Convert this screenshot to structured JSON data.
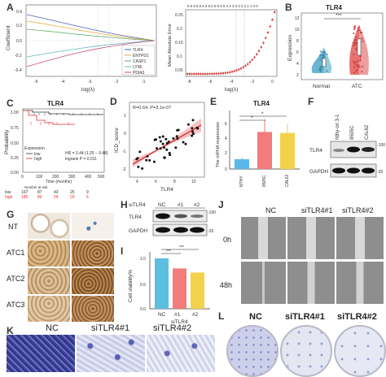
{
  "panel_letters": [
    "A",
    "B",
    "C",
    "D",
    "E",
    "F",
    "G",
    "H",
    "I",
    "J",
    "K",
    "L"
  ],
  "A": {
    "left": {
      "ylabel": "Coefficient",
      "xlabel": "log(λ)",
      "xticks": [
        "-5",
        "-4",
        "-3",
        "-2",
        "-1"
      ],
      "yticks": [
        "0.4",
        "0.2",
        "0.0",
        "-0.2",
        "-0.4"
      ],
      "legend": [
        "TLR4",
        "ENTPD1",
        "CASP1",
        "LY96",
        "PDIA3"
      ],
      "legend_colors": [
        "#4a63b0",
        "#e4a836",
        "#5aa864",
        "#5cb8c8",
        "#c84b7a"
      ]
    },
    "right": {
      "ylabel": "Mean Absolute Error",
      "xlabel": "log(λ)",
      "xticks": [
        "-8",
        "-6",
        "-4",
        "-2",
        "0"
      ],
      "yticks": [
        "0.25",
        "0.2",
        "0.15",
        "0.1",
        "0.05"
      ],
      "top_ticks": "5 5 5 5 5 5 5 5 5 5 5 5 5 4 4 4 3 3 2 2 1 1 0 0"
    }
  },
  "B": {
    "title": "TLR4",
    "ylabel": "Expression",
    "categories": [
      "Normal",
      "ATC"
    ],
    "sig": "***",
    "yticks": [
      "12",
      "10",
      "8",
      "6",
      "4",
      "2"
    ],
    "colors": [
      "#4fa9c9",
      "#e35b5b"
    ]
  },
  "C": {
    "title": "TLR4",
    "ylabel": "Probability",
    "xlabel": "Time (months)",
    "yticks": [
      "1.00",
      "0.75",
      "0.50",
      "0.25",
      "0.00"
    ],
    "xticks": [
      "0",
      "100",
      "200",
      "300",
      "400",
      "500"
    ],
    "legend_title": "Expression",
    "legend": [
      "low",
      "high"
    ],
    "stat1": "HR = 3.44 (1.25 − 9.48)",
    "stat2": "logrank P = 0.011",
    "risk_title": "Number at risk",
    "risk_low": [
      "107",
      "87",
      "43",
      "25",
      "9"
    ],
    "risk_high": [
      "185",
      "80",
      "24",
      "20",
      "6"
    ]
  },
  "D": {
    "annot": "R=0.64, P=3.1e-07",
    "xlabel": "TLR4",
    "ylabel": "ICD_score",
    "xticks": [
      "4",
      "6",
      "8",
      "10"
    ],
    "yticks": [
      "1",
      "0",
      "-1",
      "-2"
    ]
  },
  "E": {
    "title": "TLR4",
    "ylabel": "The mRNA expression",
    "categories": [
      "NTHY",
      "8505C",
      "CAL62"
    ],
    "sig": "*",
    "yticks": [
      "6",
      "4",
      "2",
      "0"
    ],
    "colors": [
      "#5bb8e8",
      "#f27b7b",
      "#f2d24a"
    ]
  },
  "F": {
    "columns": [
      "Nthy-ori 3-1",
      "8505C",
      "CAL62"
    ],
    "rows": [
      "TLR4",
      "GAPDH"
    ],
    "markers": [
      "-100",
      "-35"
    ]
  },
  "G": {
    "rows": [
      "NT",
      "ATC1",
      "ATC2",
      "ATC3"
    ]
  },
  "H": {
    "header": [
      "siTLR4",
      "NC",
      "#1",
      "#2"
    ],
    "rows": [
      "TLR4",
      "GAPDH"
    ],
    "markers": [
      "-100",
      "-35"
    ]
  },
  "I": {
    "ylabel": "Cell viability%",
    "xlabel": "siTLR4",
    "categories": [
      "NC",
      "#1",
      "#2"
    ],
    "sig": [
      "***",
      "***"
    ],
    "yticks": [
      "1.0",
      "0.5",
      "0.0"
    ],
    "colors": [
      "#5bc0e0",
      "#f27b7b",
      "#f2d24a"
    ]
  },
  "J": {
    "columns": [
      "NC",
      "siTLR4#1",
      "siTLR4#2"
    ],
    "rows": [
      "0h",
      "48h"
    ]
  },
  "K": {
    "columns": [
      "NC",
      "siTLR4#1",
      "siTLR4#2"
    ]
  },
  "L": {
    "columns": [
      "NC",
      "siTLR4#1",
      "siTLR4#2"
    ]
  }
}
